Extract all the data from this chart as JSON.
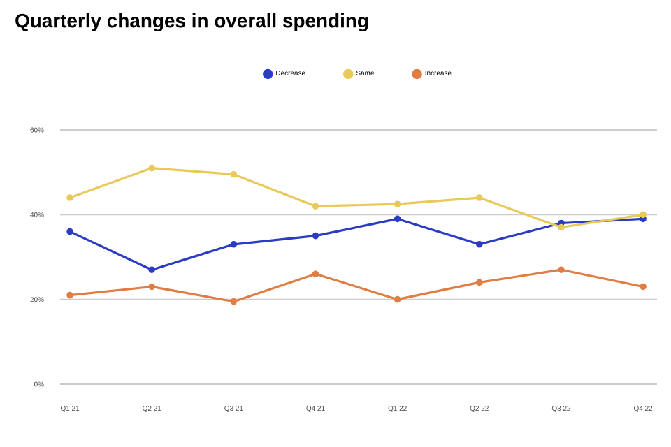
{
  "chart_data": {
    "type": "line",
    "title": "Quarterly changes in overall spending",
    "categories": [
      "Q1 21",
      "Q2 21",
      "Q3 21",
      "Q4 21",
      "Q1 22",
      "Q2 22",
      "Q3 22",
      "Q4 22"
    ],
    "series": [
      {
        "name": "Decrease",
        "color": "#2b3cc4",
        "values": [
          36,
          27,
          33,
          35,
          39,
          33,
          38,
          39
        ]
      },
      {
        "name": "Same",
        "color": "#e8c95a",
        "values": [
          44,
          51,
          49.5,
          42,
          42.5,
          44,
          37,
          40
        ]
      },
      {
        "name": "Increase",
        "color": "#e07d45",
        "values": [
          21,
          23,
          19.5,
          26,
          20,
          24,
          27,
          23
        ]
      }
    ],
    "ylim": [
      0,
      60
    ],
    "yticks": [
      {
        "value": 0,
        "label": "0%"
      },
      {
        "value": 20,
        "label": "20%"
      },
      {
        "value": 40,
        "label": "40%"
      },
      {
        "value": 60,
        "label": "60%"
      }
    ],
    "grid": "y",
    "legend": "top",
    "marker": "circle",
    "line_style": "solid"
  }
}
